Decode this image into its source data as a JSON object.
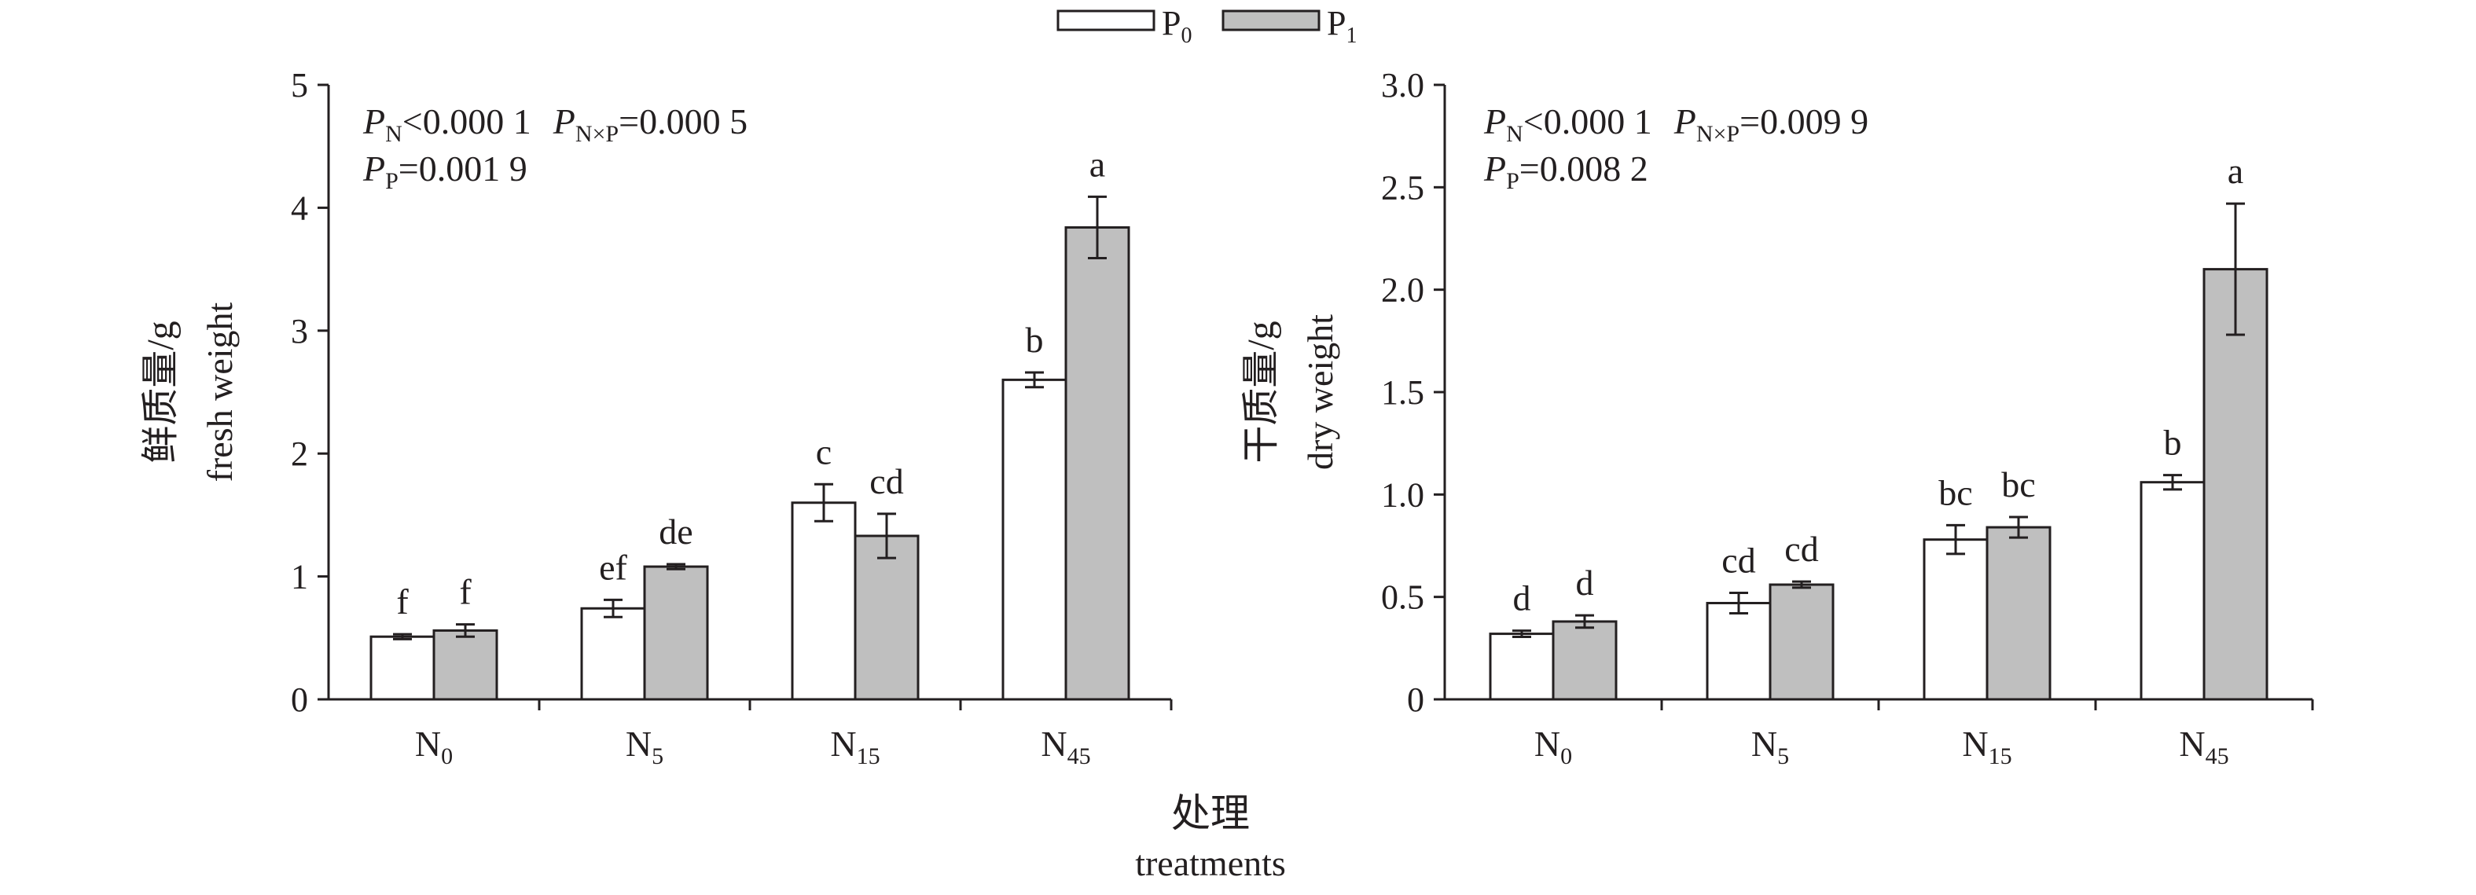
{
  "legend": {
    "items": [
      {
        "label": "P",
        "sub": "0",
        "color": "#ffffff"
      },
      {
        "label": "P",
        "sub": "1",
        "color": "#bfbfbf"
      }
    ]
  },
  "xaxis": {
    "title_cn": "处理",
    "title_en": "treatments"
  },
  "colors": {
    "p0": "#ffffff",
    "p1": "#bfbfbf",
    "ink": "#231f20"
  },
  "chart_data": [
    {
      "type": "bar",
      "categories": [
        {
          "main": "N",
          "sub": "0"
        },
        {
          "main": "N",
          "sub": "5"
        },
        {
          "main": "N",
          "sub": "15"
        },
        {
          "main": "N",
          "sub": "45"
        }
      ],
      "series": [
        {
          "values": [
            0.51,
            0.74,
            1.6,
            2.6
          ],
          "errors": [
            0.02,
            0.07,
            0.15,
            0.06
          ],
          "letters": [
            "f",
            "ef",
            "c",
            "b"
          ]
        },
        {
          "values": [
            0.56,
            1.08,
            1.33,
            3.84
          ],
          "errors": [
            0.05,
            0.02,
            0.18,
            0.25
          ],
          "letters": [
            "f",
            "de",
            "cd",
            "a"
          ]
        }
      ],
      "ylabel_cn": "鲜质量/g",
      "ylabel_en": "fresh weight",
      "ylim": [
        0,
        5
      ],
      "yticks": [
        0,
        1,
        2,
        3,
        4,
        5
      ],
      "ytick_labels": [
        "0",
        "1",
        "2",
        "3",
        "4",
        "5"
      ],
      "stats": [
        {
          "p": "P",
          "sub": "N",
          "rest": "<0.000 1"
        },
        {
          "p": "P",
          "sub": "N×P",
          "rest": "=0.000 5"
        },
        {
          "p": "P",
          "sub": "P",
          "rest": "=0.001 9"
        }
      ]
    },
    {
      "type": "bar",
      "categories": [
        {
          "main": "N",
          "sub": "0"
        },
        {
          "main": "N",
          "sub": "5"
        },
        {
          "main": "N",
          "sub": "15"
        },
        {
          "main": "N",
          "sub": "45"
        }
      ],
      "series": [
        {
          "values": [
            0.32,
            0.47,
            0.78,
            1.06
          ],
          "errors": [
            0.015,
            0.05,
            0.07,
            0.035
          ],
          "letters": [
            "d",
            "cd",
            "bc",
            "b"
          ]
        },
        {
          "values": [
            0.38,
            0.56,
            0.84,
            2.1
          ],
          "errors": [
            0.03,
            0.015,
            0.05,
            0.32
          ],
          "letters": [
            "d",
            "cd",
            "bc",
            "a"
          ]
        }
      ],
      "ylabel_cn": "干质量/g",
      "ylabel_en": "dry weight",
      "ylim": [
        0,
        3
      ],
      "yticks": [
        0,
        0.5,
        1,
        1.5,
        2,
        2.5,
        3
      ],
      "ytick_labels": [
        "0",
        "0.5",
        "1.0",
        "1.5",
        "2.0",
        "2.5",
        "3.0"
      ],
      "stats": [
        {
          "p": "P",
          "sub": "N",
          "rest": "<0.000 1"
        },
        {
          "p": "P",
          "sub": "N×P",
          "rest": "=0.009 9"
        },
        {
          "p": "P",
          "sub": "P",
          "rest": "=0.008 2"
        }
      ]
    }
  ]
}
